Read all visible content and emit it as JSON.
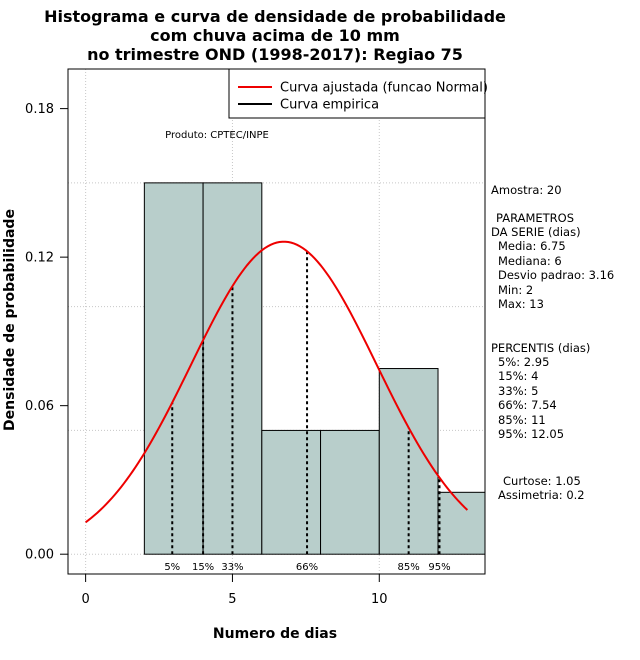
{
  "chart_data": {
    "type": "histogram",
    "title_lines": [
      "Histograma e curva de densidade de probabilidade",
      "com chuva acima de 10 mm",
      "no trimestre OND (1998-2017): Regiao 75"
    ],
    "xlabel": "Numero de dias",
    "ylabel": "Densidade de probabilidade",
    "xlim": [
      -0.6,
      13.6
    ],
    "ylim": [
      -0.008,
      0.196
    ],
    "x_ticks": [
      0,
      5,
      10
    ],
    "x_tick_labels": [
      "0",
      "5",
      "10"
    ],
    "y_ticks": [
      0.0,
      0.06,
      0.12,
      0.18
    ],
    "y_tick_labels": [
      "0.00",
      "0.06",
      "0.12",
      "0.18"
    ],
    "grid": true,
    "bins": [
      {
        "x0": 2,
        "x1": 4,
        "density": 0.15
      },
      {
        "x0": 4,
        "x1": 6,
        "density": 0.15
      },
      {
        "x0": 6,
        "x1": 8,
        "density": 0.05
      },
      {
        "x0": 8,
        "x1": 10,
        "density": 0.05
      },
      {
        "x0": 10,
        "x1": 12,
        "density": 0.075
      },
      {
        "x0": 12,
        "x1": 14,
        "density": 0.025
      }
    ],
    "bar_color": "#b8cecb",
    "normal_fit": {
      "mean": 6.75,
      "sd": 3.16,
      "x_from": 0,
      "x_to": 13,
      "color": "#ee0000"
    },
    "percentile_markers": [
      {
        "label": "5%",
        "x": 2.95
      },
      {
        "label": "15%",
        "x": 4
      },
      {
        "label": "33%",
        "x": 5
      },
      {
        "label": "66%",
        "x": 7.54
      },
      {
        "label": "85%",
        "x": 11
      },
      {
        "label": "95%",
        "x": 12.05
      }
    ],
    "legend": {
      "position": "top-right",
      "entries": [
        {
          "label": "Curva ajustada (funcao Normal)",
          "color": "#ee0000"
        },
        {
          "label": "Curva empirica",
          "color": "#000000"
        }
      ]
    },
    "annotation": "Produto: CPTEC/INPE"
  },
  "side_panel": {
    "sample": "Amostra: 20",
    "params_title": "PARAMETROS",
    "params_subtitle": "DA SERIE (dias)",
    "params": [
      "Media: 6.75",
      "Mediana: 6",
      "Desvio padrao: 3.16",
      "Min: 2",
      "Max: 13"
    ],
    "percentis_title": "PERCENTIS (dias)",
    "percentis": [
      "5%: 2.95",
      "15%: 4",
      "33%: 5",
      "66%: 7.54",
      "85%: 11",
      "95%: 12.05"
    ],
    "curtose": "Curtose: 1.05",
    "assimetria": "Assimetria: 0.2"
  }
}
